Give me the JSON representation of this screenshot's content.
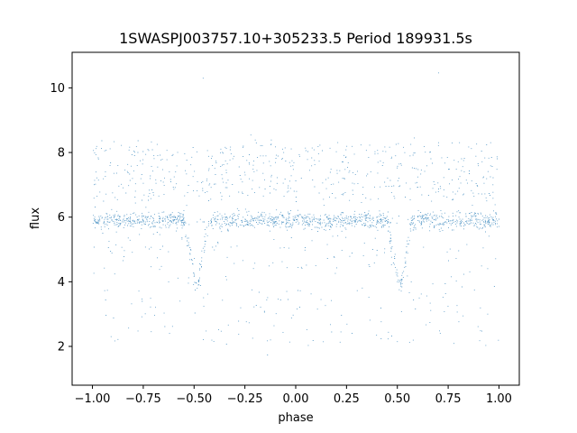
{
  "chart_data": {
    "type": "scatter",
    "title": "1SWASPJ003757.10+305233.5 Period 189931.5s",
    "xlabel": "phase",
    "ylabel": "flux",
    "xlim": [
      -1.1,
      1.1
    ],
    "ylim": [
      0.8,
      11.1
    ],
    "xticks": [
      -1.0,
      -0.75,
      -0.5,
      -0.25,
      0.0,
      0.25,
      0.5,
      0.75,
      1.0
    ],
    "xtick_labels": [
      "−1.00",
      "−0.75",
      "−0.50",
      "−0.25",
      "0.00",
      "0.25",
      "0.50",
      "0.75",
      "1.00"
    ],
    "yticks": [
      2,
      4,
      6,
      8,
      10
    ],
    "ytick_labels": [
      "2",
      "4",
      "6",
      "8",
      "10"
    ],
    "grid": false,
    "legend": "none",
    "marker_color": "#1f77b4",
    "series": [
      {
        "description_of_shape": "phase-folded light curve repeated over two cycles",
        "x_range": [
          -1.0,
          1.0
        ],
        "baseline_flux": 5.9,
        "dip_centers": [
          -0.49,
          0.51
        ],
        "dip_min_flux": 3.7,
        "upper_scatter_band": [
          6.5,
          8.3
        ],
        "lower_scatter_min": 1.2,
        "outlier_max": 10.6
      }
    ]
  }
}
